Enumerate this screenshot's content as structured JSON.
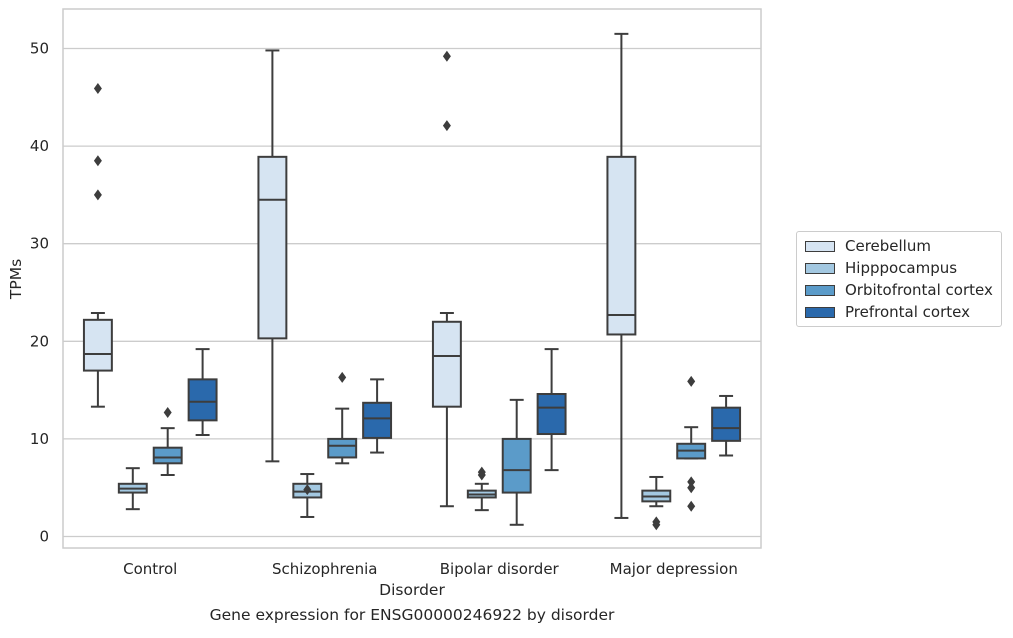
{
  "caption": "Gene expression for ENSG00000246922 by disorder",
  "chart_data": {
    "type": "box",
    "title": "",
    "xlabel": "Disorder",
    "ylabel": "TPMs",
    "ylim": [
      -1,
      54
    ],
    "yticks": [
      0,
      10,
      20,
      30,
      40,
      50
    ],
    "grid": "y",
    "legend_position": "right",
    "categories": [
      "Control",
      "Schizophrenia",
      "Bipolar disorder",
      "Major depression"
    ],
    "series": [
      {
        "name": "Cerebellum",
        "color": "#d6e4f2",
        "boxes": [
          {
            "whisker_low": 13.3,
            "q1": 17.0,
            "median": 18.7,
            "q3": 22.2,
            "whisker_high": 22.9,
            "outliers": [
              35.0,
              38.5,
              45.9
            ]
          },
          {
            "whisker_low": 7.7,
            "q1": 20.3,
            "median": 34.5,
            "q3": 38.9,
            "whisker_high": 49.8,
            "outliers": []
          },
          {
            "whisker_low": 3.1,
            "q1": 13.3,
            "median": 18.5,
            "q3": 22.0,
            "whisker_high": 22.9,
            "outliers": [
              42.1,
              49.2
            ]
          },
          {
            "whisker_low": 1.9,
            "q1": 20.7,
            "median": 22.7,
            "q3": 38.9,
            "whisker_high": 51.5,
            "outliers": []
          }
        ]
      },
      {
        "name": "Hipppocampus",
        "color": "#a3c8e1",
        "boxes": [
          {
            "whisker_low": 2.8,
            "q1": 4.5,
            "median": 4.9,
            "q3": 5.4,
            "whisker_high": 7.0,
            "outliers": []
          },
          {
            "whisker_low": 2.0,
            "q1": 4.0,
            "median": 4.6,
            "q3": 5.4,
            "whisker_high": 6.4,
            "outliers": [
              4.8
            ]
          },
          {
            "whisker_low": 2.7,
            "q1": 4.0,
            "median": 4.3,
            "q3": 4.7,
            "whisker_high": 5.4,
            "outliers": [
              6.3,
              6.6
            ]
          },
          {
            "whisker_low": 3.1,
            "q1": 3.6,
            "median": 4.1,
            "q3": 4.7,
            "whisker_high": 6.1,
            "outliers": [
              1.2,
              1.5
            ]
          }
        ]
      },
      {
        "name": "Orbitofrontal cortex",
        "color": "#5b9bc9",
        "boxes": [
          {
            "whisker_low": 6.3,
            "q1": 7.5,
            "median": 8.1,
            "q3": 9.1,
            "whisker_high": 11.1,
            "outliers": [
              12.7
            ]
          },
          {
            "whisker_low": 7.5,
            "q1": 8.1,
            "median": 9.3,
            "q3": 10.0,
            "whisker_high": 13.1,
            "outliers": [
              16.3
            ]
          },
          {
            "whisker_low": 1.2,
            "q1": 4.5,
            "median": 6.8,
            "q3": 10.0,
            "whisker_high": 14.0,
            "outliers": []
          },
          {
            "whisker_low": 8.0,
            "q1": 8.0,
            "median": 8.8,
            "q3": 9.5,
            "whisker_high": 11.2,
            "outliers": [
              3.1,
              5.0,
              5.6,
              15.9
            ]
          }
        ]
      },
      {
        "name": "Prefrontal cortex",
        "color": "#2a69ac",
        "boxes": [
          {
            "whisker_low": 10.4,
            "q1": 11.9,
            "median": 13.8,
            "q3": 16.1,
            "whisker_high": 19.2,
            "outliers": []
          },
          {
            "whisker_low": 8.6,
            "q1": 10.1,
            "median": 12.1,
            "q3": 13.7,
            "whisker_high": 16.1,
            "outliers": []
          },
          {
            "whisker_low": 6.8,
            "q1": 10.5,
            "median": 13.2,
            "q3": 14.6,
            "whisker_high": 19.2,
            "outliers": []
          },
          {
            "whisker_low": 8.3,
            "q1": 9.8,
            "median": 11.1,
            "q3": 13.2,
            "whisker_high": 14.4,
            "outliers": []
          }
        ]
      }
    ]
  }
}
